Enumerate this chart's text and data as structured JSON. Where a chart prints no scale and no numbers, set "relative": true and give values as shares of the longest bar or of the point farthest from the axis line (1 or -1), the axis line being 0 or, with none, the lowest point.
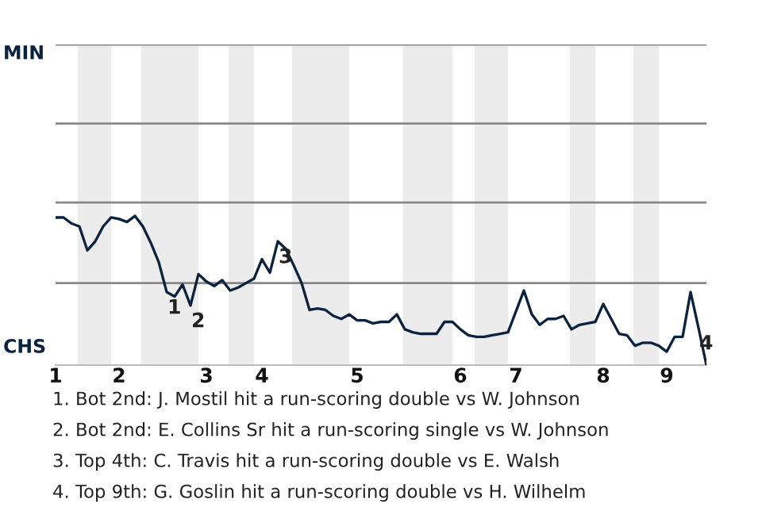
{
  "chart_data": {
    "type": "line",
    "relative": true,
    "categories": [
      "1",
      null,
      null,
      null,
      null,
      null,
      null,
      null,
      "2",
      null,
      null,
      null,
      null,
      null,
      null,
      null,
      null,
      null,
      null,
      "3",
      null,
      null,
      null,
      null,
      null,
      null,
      "4",
      null,
      null,
      null,
      null,
      null,
      null,
      null,
      null,
      null,
      null,
      null,
      "5",
      null,
      null,
      null,
      null,
      null,
      null,
      null,
      null,
      null,
      null,
      null,
      null,
      "6",
      null,
      null,
      null,
      null,
      null,
      null,
      "7",
      null,
      null,
      null,
      null,
      null,
      null,
      null,
      null,
      null,
      null,
      "8",
      null,
      null,
      null,
      null,
      null,
      null,
      null,
      "9",
      null,
      null,
      null,
      null,
      null
    ],
    "series": [
      {
        "color": "#0c2340",
        "values": [
          0.99,
          0.99,
          0.95,
          0.93,
          0.77,
          0.83,
          0.93,
          0.99,
          0.98,
          0.96,
          1,
          0.93,
          0.82,
          0.69,
          0.49,
          0.46,
          0.54,
          0.4,
          0.61,
          0.56,
          0.53,
          0.57,
          0.5,
          0.52,
          0.55,
          0.58,
          0.71,
          0.62,
          0.83,
          0.78,
          0.67,
          0.55,
          0.37,
          0.38,
          0.37,
          0.33,
          0.31,
          0.34,
          0.3,
          0.3,
          0.28,
          0.29,
          0.29,
          0.34,
          0.24,
          0.22,
          0.21,
          0.21,
          0.21,
          0.29,
          0.29,
          0.24,
          0.2,
          0.19,
          0.19,
          0.2,
          0.21,
          0.22,
          0.36,
          0.5,
          0.34,
          0.27,
          0.31,
          0.31,
          0.33,
          0.24,
          0.27,
          0.28,
          0.29,
          0.41,
          0.31,
          0.21,
          0.2,
          0.13,
          0.15,
          0.15,
          0.13,
          0.09,
          0.19,
          0.19,
          0.49,
          0.25,
          0
        ]
      }
    ],
    "ref_lines": [
      {
        "axis": "y",
        "value": 0.55,
        "color": "#888888"
      },
      {
        "axis": "y",
        "value": 1.09,
        "color": "#888888"
      },
      {
        "axis": "y",
        "value": 1.62,
        "color": "#888888"
      },
      {
        "axis": "y",
        "value": 2.15,
        "color": "#888888"
      }
    ],
    "annotations": [
      "MIN",
      "CHS",
      "1. Bot 2nd: J. Mostil hit a run-scoring double vs W. Johnson",
      "2. Bot 2nd: E. Collins Sr hit a run-scoring single vs W. Johnson",
      "3. Top 4th: C. Travis hit a run-scoring double vs E. Walsh",
      "4. Top 9th: G. Goslin hit a run-scoring double vs H. Wilhelm",
      {
        "text": "1",
        "y": 0.49
      },
      {
        "text": "2",
        "y": 0.4
      },
      {
        "text": "3",
        "y": 0.83
      },
      {
        "text": "4",
        "y": 0.25
      }
    ],
    "grid": false,
    "legend": false
  }
}
